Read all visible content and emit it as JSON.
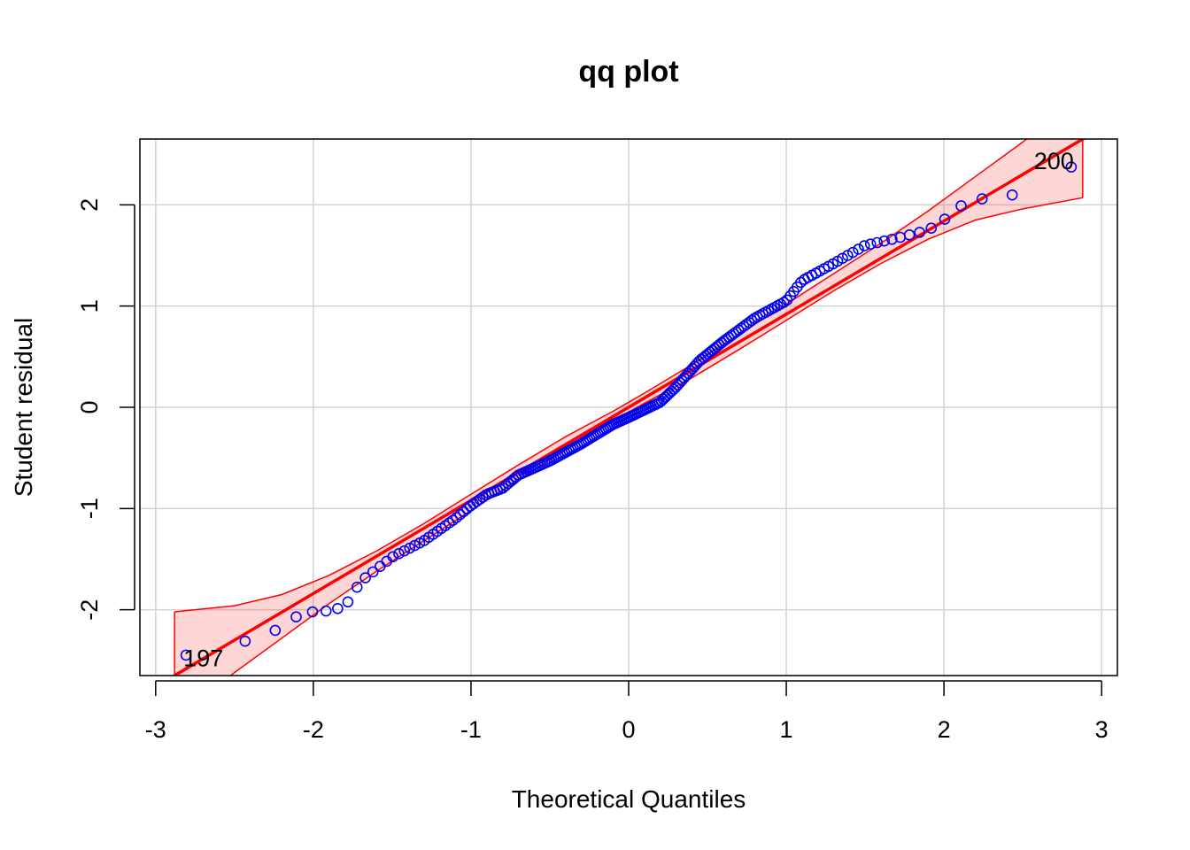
{
  "chart_data": {
    "type": "scatter",
    "title": "qq plot",
    "xlabel": "Theoretical Quantiles",
    "ylabel": "Student residual",
    "xlim": [
      -3.1,
      3.1
    ],
    "ylim": [
      -2.65,
      2.65
    ],
    "xticks": [
      -3,
      -2,
      -1,
      0,
      1,
      2,
      3
    ],
    "yticks": [
      -2,
      -1,
      0,
      1,
      2
    ],
    "xtick_labels": [
      "-3",
      "-2",
      "-1",
      "0",
      "1",
      "2",
      "3"
    ],
    "ytick_labels": [
      "-2",
      "-1",
      "0",
      "1",
      "2"
    ],
    "grid": true,
    "reference_line": {
      "intercept": 0.0,
      "slope": 0.92
    },
    "envelope": {
      "x": [
        -2.88,
        -2.5,
        -2.2,
        -1.9,
        -1.6,
        -1.3,
        -1.0,
        -0.7,
        -0.4,
        -0.1,
        0.0,
        0.1,
        0.4,
        0.7,
        1.0,
        1.3,
        1.6,
        1.9,
        2.2,
        2.5,
        2.88
      ],
      "upper": [
        -2.02,
        -1.96,
        -1.85,
        -1.66,
        -1.42,
        -1.15,
        -0.86,
        -0.57,
        -0.29,
        -0.04,
        0.05,
        0.14,
        0.42,
        0.72,
        1.02,
        1.32,
        1.62,
        1.94,
        2.28,
        2.62,
        3.1
      ],
      "lower": [
        -3.1,
        -2.62,
        -2.28,
        -1.94,
        -1.62,
        -1.32,
        -1.02,
        -0.72,
        -0.42,
        -0.14,
        -0.05,
        0.04,
        0.29,
        0.57,
        0.86,
        1.15,
        1.42,
        1.66,
        1.85,
        1.96,
        2.07
      ]
    },
    "series": [
      {
        "color": "#0000ee",
        "x_range": [
          -2.88,
          2.88
        ],
        "n": 200,
        "anchors": [
          [
            -2.88,
            -2.47
          ],
          [
            -2.52,
            -2.36
          ],
          [
            -2.31,
            -2.24
          ],
          [
            -2.18,
            -2.17
          ],
          [
            -2.08,
            -2.03
          ],
          [
            -2.0,
            -2.02
          ],
          [
            -1.9,
            -2.01
          ],
          [
            -1.8,
            -1.97
          ],
          [
            -1.7,
            -1.72
          ],
          [
            -1.5,
            -1.48
          ],
          [
            -1.3,
            -1.32
          ],
          [
            -1.1,
            -1.1
          ],
          [
            -1.0,
            -0.97
          ],
          [
            -0.9,
            -0.86
          ],
          [
            -0.8,
            -0.8
          ],
          [
            -0.7,
            -0.67
          ],
          [
            -0.5,
            -0.53
          ],
          [
            -0.3,
            -0.36
          ],
          [
            -0.1,
            -0.17
          ],
          [
            0.0,
            -0.1
          ],
          [
            0.2,
            0.05
          ],
          [
            0.3,
            0.2
          ],
          [
            0.45,
            0.46
          ],
          [
            0.6,
            0.65
          ],
          [
            0.8,
            0.88
          ],
          [
            1.0,
            1.05
          ],
          [
            1.1,
            1.25
          ],
          [
            1.3,
            1.42
          ],
          [
            1.5,
            1.6
          ],
          [
            1.7,
            1.67
          ],
          [
            1.9,
            1.75
          ],
          [
            2.0,
            1.85
          ],
          [
            2.08,
            1.97
          ],
          [
            2.18,
            2.04
          ],
          [
            2.31,
            2.08
          ],
          [
            2.52,
            2.11
          ],
          [
            2.88,
            2.44
          ]
        ]
      }
    ],
    "annotations": [
      {
        "text": "197",
        "x": -2.88,
        "y": -2.47
      },
      {
        "text": "200",
        "x": 2.88,
        "y": 2.44
      }
    ]
  }
}
